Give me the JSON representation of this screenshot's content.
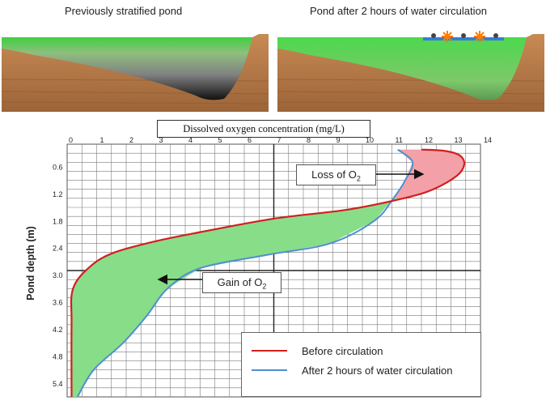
{
  "panels": {
    "left_title": "Previously stratified pond",
    "right_title": "Pond after 2 hours of water circulation"
  },
  "callouts": {
    "loss_text": "Loss of O",
    "gain_text": "Gain of O",
    "subscript": "2"
  },
  "colors": {
    "before": "#d21f1f",
    "after": "#4d8fd1",
    "gain_fill": "#88dd88",
    "loss_fill": "#f4a0a8",
    "grid": "#7a7a7a"
  },
  "chart_data": {
    "type": "line",
    "title": "Dissolved oxygen concentration (mg/L)",
    "ylabel": "Pond depth (m)",
    "xlim": [
      0,
      14
    ],
    "ylim": [
      0,
      5.6
    ],
    "y_inverted": true,
    "x_ticks": [
      "0",
      "1",
      "2",
      "3",
      "4",
      "5",
      "6",
      "7",
      "8",
      "9",
      "10",
      "11",
      "12",
      "13",
      "14"
    ],
    "y_ticks": [
      "0.6",
      "1.2",
      "1.8",
      "2.4",
      "3.0",
      "3.6",
      "4.2",
      "4.8",
      "5.4"
    ],
    "y_tick_values": [
      0.6,
      1.2,
      1.8,
      2.4,
      3.0,
      3.6,
      4.2,
      4.8,
      5.4
    ],
    "series": [
      {
        "name": "Before circulation",
        "points": [
          [
            12.0,
            0.12
          ],
          [
            12.8,
            0.15
          ],
          [
            13.3,
            0.25
          ],
          [
            13.45,
            0.45
          ],
          [
            13.2,
            0.7
          ],
          [
            12.4,
            1.0
          ],
          [
            11.4,
            1.2
          ],
          [
            9.5,
            1.45
          ],
          [
            7.0,
            1.65
          ],
          [
            4.5,
            1.95
          ],
          [
            3.0,
            2.15
          ],
          [
            1.6,
            2.4
          ],
          [
            0.8,
            2.7
          ],
          [
            0.2,
            3.2
          ],
          [
            0.15,
            4.0
          ],
          [
            0.15,
            5.6
          ]
        ]
      },
      {
        "name": "After 2 hours of water circulation",
        "points": [
          [
            11.2,
            0.12
          ],
          [
            11.7,
            0.4
          ],
          [
            11.45,
            0.8
          ],
          [
            11.05,
            1.2
          ],
          [
            10.4,
            1.7
          ],
          [
            8.9,
            2.2
          ],
          [
            6.8,
            2.45
          ],
          [
            4.5,
            2.75
          ],
          [
            3.4,
            3.2
          ],
          [
            2.7,
            3.8
          ],
          [
            1.9,
            4.4
          ],
          [
            0.9,
            5.0
          ],
          [
            0.35,
            5.6
          ]
        ]
      }
    ],
    "grid": true
  }
}
